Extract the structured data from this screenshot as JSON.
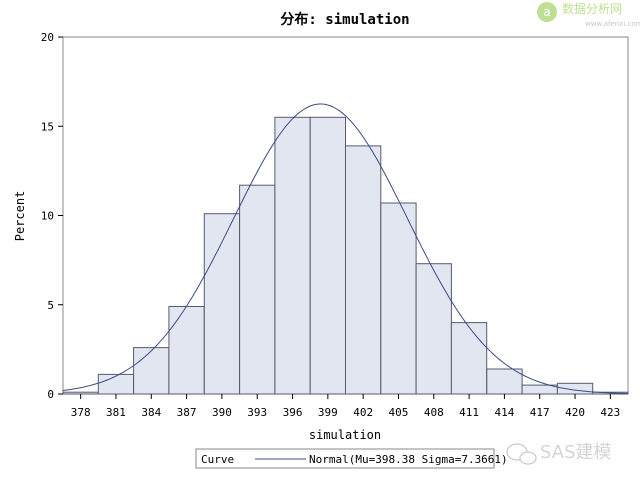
{
  "chart_data": {
    "type": "bar",
    "title": "分布: simulation",
    "xlabel": "simulation",
    "ylabel": "Percent",
    "ylim": [
      0,
      20
    ],
    "xlim": [
      376.5,
      424.5
    ],
    "y_ticks": [
      "0",
      "5",
      "10",
      "15",
      "20"
    ],
    "x_ticks": [
      "378",
      "381",
      "384",
      "387",
      "390",
      "393",
      "396",
      "399",
      "402",
      "405",
      "408",
      "411",
      "414",
      "417",
      "420",
      "423"
    ],
    "bin_width": 3,
    "categories": [
      "378",
      "381",
      "384",
      "387",
      "390",
      "393",
      "396",
      "399",
      "402",
      "405",
      "408",
      "411",
      "414",
      "417",
      "420",
      "423"
    ],
    "values": [
      0.1,
      1.1,
      2.6,
      4.9,
      10.1,
      11.7,
      15.5,
      15.5,
      13.9,
      10.7,
      7.3,
      4.0,
      1.4,
      0.5,
      0.6,
      0.1
    ],
    "curve": {
      "type": "normal",
      "mu": 398.38,
      "sigma": 7.3661
    },
    "legend": {
      "position": "bottom-center",
      "heading": "Curve",
      "label": "Normal(Mu=398.38 Sigma=7.3661)"
    },
    "colors": {
      "bar_fill": "#e1e6f0",
      "bar_stroke": "#5a5a6e",
      "curve": "#3a4b8c"
    },
    "grid": false
  },
  "watermarks": {
    "top": {
      "cn": "数据分析网",
      "url": "www.afenxi.com"
    },
    "bottom": {
      "text": "SAS建模"
    }
  }
}
